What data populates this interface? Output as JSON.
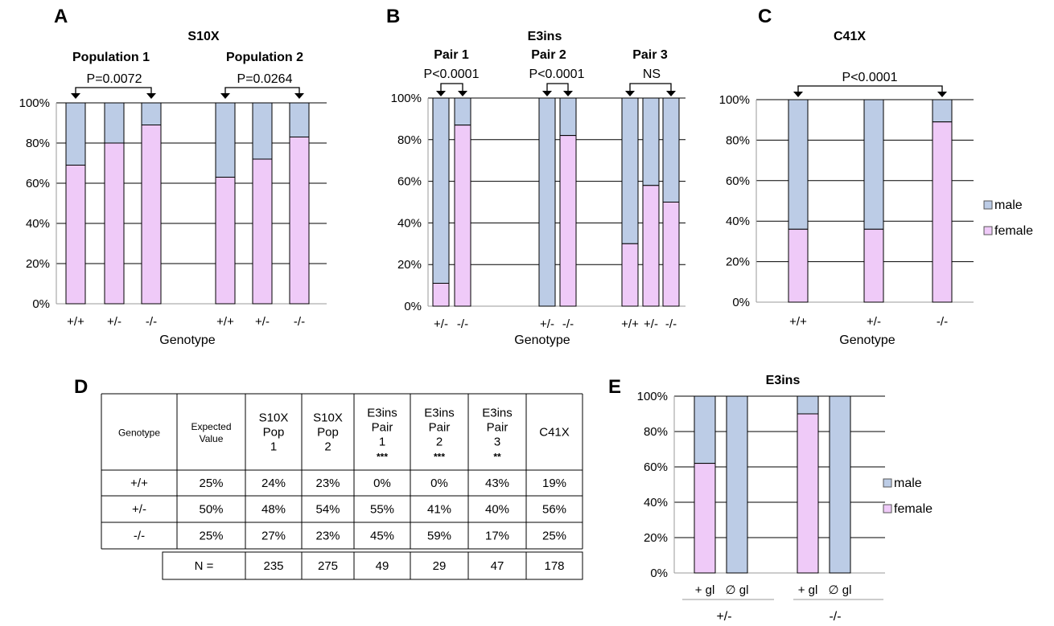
{
  "colors": {
    "female": "#efcaf8",
    "male": "#bccce6",
    "grid": "#000000",
    "axis": "#999999"
  },
  "legend": {
    "male": "male",
    "female": "female"
  },
  "panels": {
    "A": {
      "label": "A",
      "title": "S10X",
      "xlabel": "Genotype",
      "groups": [
        {
          "name": "Population 1",
          "pvalue": "P=0.0072"
        },
        {
          "name": "Population 2",
          "pvalue": "P=0.0264"
        }
      ]
    },
    "B": {
      "label": "B",
      "title": "E3ins",
      "xlabel": "Genotype",
      "groups": [
        {
          "name": "Pair 1",
          "pvalue": "P<0.0001"
        },
        {
          "name": "Pair 2",
          "pvalue": "P<0.0001"
        },
        {
          "name": "Pair 3",
          "pvalue": "NS"
        }
      ]
    },
    "C": {
      "label": "C",
      "title": "C41X",
      "xlabel": "Genotype",
      "pvalue": "P<0.0001"
    },
    "D": {
      "label": "D",
      "headers": [
        "Genotype",
        "Expected Value",
        "S10X Pop 1",
        "S10X Pop 2",
        "E3ins Pair 1",
        "E3ins Pair 2",
        "E3ins Pair 3",
        "C41X"
      ],
      "stars": [
        "",
        "",
        "",
        "",
        "***",
        "***",
        "**",
        ""
      ],
      "rows": [
        [
          "+/+",
          "25%",
          "24%",
          "23%",
          "0%",
          "0%",
          "43%",
          "19%"
        ],
        [
          "+/-",
          "50%",
          "48%",
          "54%",
          "55%",
          "41%",
          "40%",
          "56%"
        ],
        [
          "-/-",
          "25%",
          "27%",
          "23%",
          "45%",
          "59%",
          "17%",
          "25%"
        ]
      ],
      "n_label": "N =",
      "n_values": [
        "235",
        "275",
        "49",
        "29",
        "47",
        "178"
      ]
    },
    "E": {
      "label": "E",
      "title": "E3ins",
      "group_labels": [
        "+/-",
        "-/-"
      ]
    }
  },
  "chart_data": [
    {
      "type": "bar",
      "stacked": true,
      "title": "S10X",
      "xlabel": "Genotype",
      "categories": [
        "+/+",
        "+/-",
        "-/-",
        "+/+",
        "+/-",
        "-/-"
      ],
      "series": [
        {
          "name": "female",
          "values": [
            69,
            80,
            89,
            63,
            72,
            83
          ]
        },
        {
          "name": "male",
          "values": [
            31,
            20,
            11,
            37,
            28,
            17
          ]
        }
      ],
      "ylim": [
        0,
        100
      ],
      "yticks": [
        "0%",
        "20%",
        "40%",
        "60%",
        "80%",
        "100%"
      ]
    },
    {
      "type": "bar",
      "stacked": true,
      "title": "E3ins",
      "xlabel": "Genotype",
      "categories": [
        "+/-",
        "-/-",
        "+/-",
        "-/-",
        "+/+",
        "+/-",
        "-/-"
      ],
      "series": [
        {
          "name": "female",
          "values": [
            11,
            87,
            0,
            82,
            30,
            58,
            50
          ]
        },
        {
          "name": "male",
          "values": [
            89,
            13,
            100,
            18,
            70,
            42,
            50
          ]
        }
      ],
      "ylim": [
        0,
        100
      ],
      "yticks": [
        "0%",
        "20%",
        "40%",
        "60%",
        "80%",
        "100%"
      ]
    },
    {
      "type": "bar",
      "stacked": true,
      "title": "C41X",
      "xlabel": "Genotype",
      "categories": [
        "+/+",
        "+/-",
        "-/-"
      ],
      "series": [
        {
          "name": "female",
          "values": [
            36,
            36,
            89
          ]
        },
        {
          "name": "male",
          "values": [
            64,
            64,
            11
          ]
        }
      ],
      "ylim": [
        0,
        100
      ],
      "yticks": [
        "0%",
        "20%",
        "40%",
        "60%",
        "80%",
        "100%"
      ],
      "legend": "right"
    },
    {
      "type": "table",
      "columns": [
        "Genotype",
        "Expected Value",
        "S10X Pop 1",
        "S10X Pop 2",
        "E3ins Pair 1",
        "E3ins Pair 2",
        "E3ins Pair 3",
        "C41X"
      ],
      "rows": [
        [
          "+/+",
          "25%",
          "24%",
          "23%",
          "0%",
          "0%",
          "43%",
          "19%"
        ],
        [
          "+/-",
          "50%",
          "48%",
          "54%",
          "55%",
          "41%",
          "40%",
          "56%"
        ],
        [
          "-/-",
          "25%",
          "27%",
          "23%",
          "45%",
          "59%",
          "17%",
          "25%"
        ]
      ],
      "n": [
        235,
        275,
        49,
        29,
        47,
        178
      ]
    },
    {
      "type": "bar",
      "stacked": true,
      "title": "E3ins",
      "categories": [
        "+ gl",
        "∅ gl",
        "+ gl",
        "∅ gl"
      ],
      "series": [
        {
          "name": "female",
          "values": [
            62,
            0,
            90,
            0
          ]
        },
        {
          "name": "male",
          "values": [
            38,
            100,
            10,
            100
          ]
        }
      ],
      "ylim": [
        0,
        100
      ],
      "yticks": [
        "0%",
        "20%",
        "40%",
        "60%",
        "80%",
        "100%"
      ],
      "legend": "right"
    }
  ]
}
